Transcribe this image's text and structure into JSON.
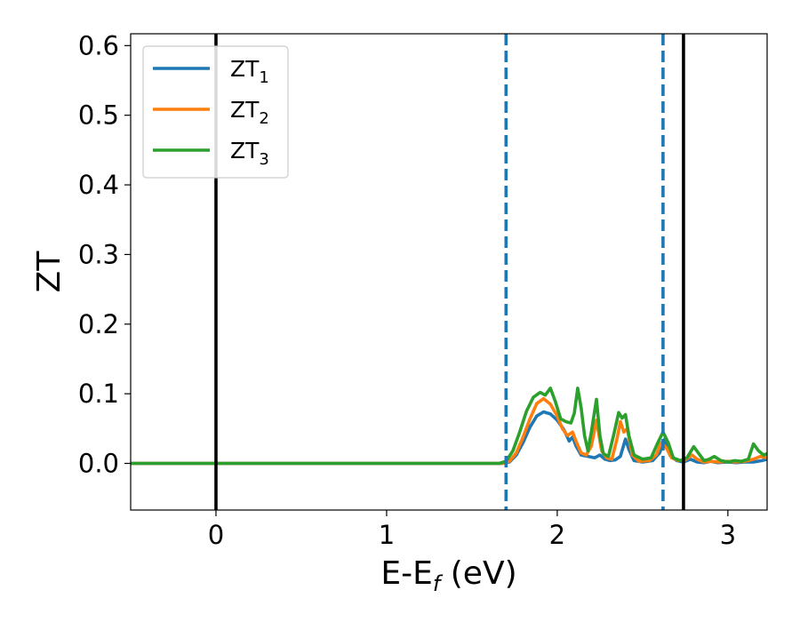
{
  "chart_data": {
    "type": "line",
    "xlabel": "E-E",
    "xlabel_sub": "f",
    "xlabel_unit": " (eV)",
    "ylabel": "ZT",
    "xlim": [
      -0.5,
      3.23
    ],
    "ylim": [
      -0.067,
      0.617
    ],
    "xticks": [
      0,
      1,
      2,
      3
    ],
    "xtick_labels": [
      "0",
      "1",
      "2",
      "3"
    ],
    "yticks": [
      0.0,
      0.1,
      0.2,
      0.3,
      0.4,
      0.5,
      0.6
    ],
    "ytick_labels": [
      "0.0",
      "0.1",
      "0.2",
      "0.3",
      "0.4",
      "0.5",
      "0.6"
    ],
    "grid": false,
    "legend_position": "top-left",
    "vlines": [
      {
        "x": 0.0,
        "style": "solid",
        "color": "#000000"
      },
      {
        "x": 1.7,
        "style": "dashed",
        "color": "#1f77b4"
      },
      {
        "x": 2.62,
        "style": "dashed",
        "color": "#1f77b4"
      },
      {
        "x": 2.74,
        "style": "solid",
        "color": "#000000"
      }
    ],
    "series": [
      {
        "name": "ZT",
        "sub": "1",
        "color": "#1f77b4",
        "points": [
          [
            -0.5,
            0
          ],
          [
            1.68,
            0
          ],
          [
            1.72,
            0.002
          ],
          [
            1.76,
            0.012
          ],
          [
            1.8,
            0.03
          ],
          [
            1.84,
            0.052
          ],
          [
            1.88,
            0.068
          ],
          [
            1.92,
            0.074
          ],
          [
            1.96,
            0.071
          ],
          [
            2.0,
            0.062
          ],
          [
            2.04,
            0.048
          ],
          [
            2.07,
            0.032
          ],
          [
            2.09,
            0.038
          ],
          [
            2.11,
            0.025
          ],
          [
            2.14,
            0.012
          ],
          [
            2.18,
            0.01
          ],
          [
            2.22,
            0.008
          ],
          [
            2.25,
            0.012
          ],
          [
            2.28,
            0.006
          ],
          [
            2.31,
            0.004
          ],
          [
            2.34,
            0.005
          ],
          [
            2.37,
            0.01
          ],
          [
            2.4,
            0.035
          ],
          [
            2.42,
            0.02
          ],
          [
            2.45,
            0.004
          ],
          [
            2.5,
            0.002
          ],
          [
            2.56,
            0.004
          ],
          [
            2.6,
            0.015
          ],
          [
            2.63,
            0.035
          ],
          [
            2.66,
            0.012
          ],
          [
            2.7,
            0.004
          ],
          [
            2.74,
            0.002
          ],
          [
            2.78,
            0.006
          ],
          [
            2.82,
            0.002
          ],
          [
            2.86,
            0.001
          ],
          [
            2.9,
            0.003
          ],
          [
            2.94,
            0.001
          ],
          [
            3.0,
            0.002
          ],
          [
            3.05,
            0.001
          ],
          [
            3.1,
            0.002
          ],
          [
            3.15,
            0.002
          ],
          [
            3.2,
            0.004
          ],
          [
            3.23,
            0.006
          ]
        ]
      },
      {
        "name": "ZT",
        "sub": "2",
        "color": "#ff7f0e",
        "points": [
          [
            -0.5,
            0
          ],
          [
            1.68,
            0
          ],
          [
            1.72,
            0.003
          ],
          [
            1.76,
            0.015
          ],
          [
            1.8,
            0.038
          ],
          [
            1.84,
            0.064
          ],
          [
            1.88,
            0.086
          ],
          [
            1.92,
            0.093
          ],
          [
            1.96,
            0.085
          ],
          [
            2.0,
            0.068
          ],
          [
            2.03,
            0.05
          ],
          [
            2.06,
            0.04
          ],
          [
            2.09,
            0.045
          ],
          [
            2.11,
            0.032
          ],
          [
            2.14,
            0.015
          ],
          [
            2.17,
            0.012
          ],
          [
            2.2,
            0.025
          ],
          [
            2.23,
            0.062
          ],
          [
            2.26,
            0.018
          ],
          [
            2.29,
            0.008
          ],
          [
            2.32,
            0.006
          ],
          [
            2.35,
            0.035
          ],
          [
            2.37,
            0.06
          ],
          [
            2.39,
            0.045
          ],
          [
            2.41,
            0.05
          ],
          [
            2.44,
            0.012
          ],
          [
            2.48,
            0.003
          ],
          [
            2.54,
            0.004
          ],
          [
            2.58,
            0.012
          ],
          [
            2.61,
            0.03
          ],
          [
            2.64,
            0.022
          ],
          [
            2.67,
            0.008
          ],
          [
            2.71,
            0.004
          ],
          [
            2.75,
            0.005
          ],
          [
            2.79,
            0.012
          ],
          [
            2.82,
            0.006
          ],
          [
            2.86,
            0.002
          ],
          [
            2.9,
            0.003
          ],
          [
            2.95,
            0.002
          ],
          [
            3.0,
            0.003
          ],
          [
            3.05,
            0.002
          ],
          [
            3.1,
            0.003
          ],
          [
            3.15,
            0.006
          ],
          [
            3.19,
            0.01
          ],
          [
            3.23,
            0.008
          ]
        ]
      },
      {
        "name": "ZT",
        "sub": "3",
        "color": "#2ca02c",
        "points": [
          [
            -0.5,
            0
          ],
          [
            1.66,
            0
          ],
          [
            1.7,
            0.003
          ],
          [
            1.74,
            0.018
          ],
          [
            1.78,
            0.045
          ],
          [
            1.82,
            0.075
          ],
          [
            1.86,
            0.095
          ],
          [
            1.9,
            0.102
          ],
          [
            1.93,
            0.098
          ],
          [
            1.96,
            0.108
          ],
          [
            1.99,
            0.088
          ],
          [
            2.02,
            0.064
          ],
          [
            2.05,
            0.06
          ],
          [
            2.08,
            0.058
          ],
          [
            2.1,
            0.072
          ],
          [
            2.12,
            0.108
          ],
          [
            2.14,
            0.08
          ],
          [
            2.16,
            0.04
          ],
          [
            2.18,
            0.018
          ],
          [
            2.2,
            0.045
          ],
          [
            2.23,
            0.092
          ],
          [
            2.25,
            0.04
          ],
          [
            2.27,
            0.014
          ],
          [
            2.3,
            0.01
          ],
          [
            2.33,
            0.04
          ],
          [
            2.36,
            0.073
          ],
          [
            2.38,
            0.065
          ],
          [
            2.4,
            0.07
          ],
          [
            2.42,
            0.04
          ],
          [
            2.45,
            0.012
          ],
          [
            2.5,
            0.006
          ],
          [
            2.55,
            0.008
          ],
          [
            2.59,
            0.03
          ],
          [
            2.62,
            0.045
          ],
          [
            2.65,
            0.03
          ],
          [
            2.68,
            0.008
          ],
          [
            2.72,
            0.004
          ],
          [
            2.76,
            0.008
          ],
          [
            2.8,
            0.024
          ],
          [
            2.83,
            0.014
          ],
          [
            2.86,
            0.004
          ],
          [
            2.89,
            0.006
          ],
          [
            2.92,
            0.01
          ],
          [
            2.96,
            0.004
          ],
          [
            3.0,
            0.002
          ],
          [
            3.04,
            0.004
          ],
          [
            3.08,
            0.003
          ],
          [
            3.12,
            0.006
          ],
          [
            3.15,
            0.028
          ],
          [
            3.18,
            0.018
          ],
          [
            3.21,
            0.012
          ],
          [
            3.23,
            0.014
          ]
        ]
      }
    ]
  }
}
